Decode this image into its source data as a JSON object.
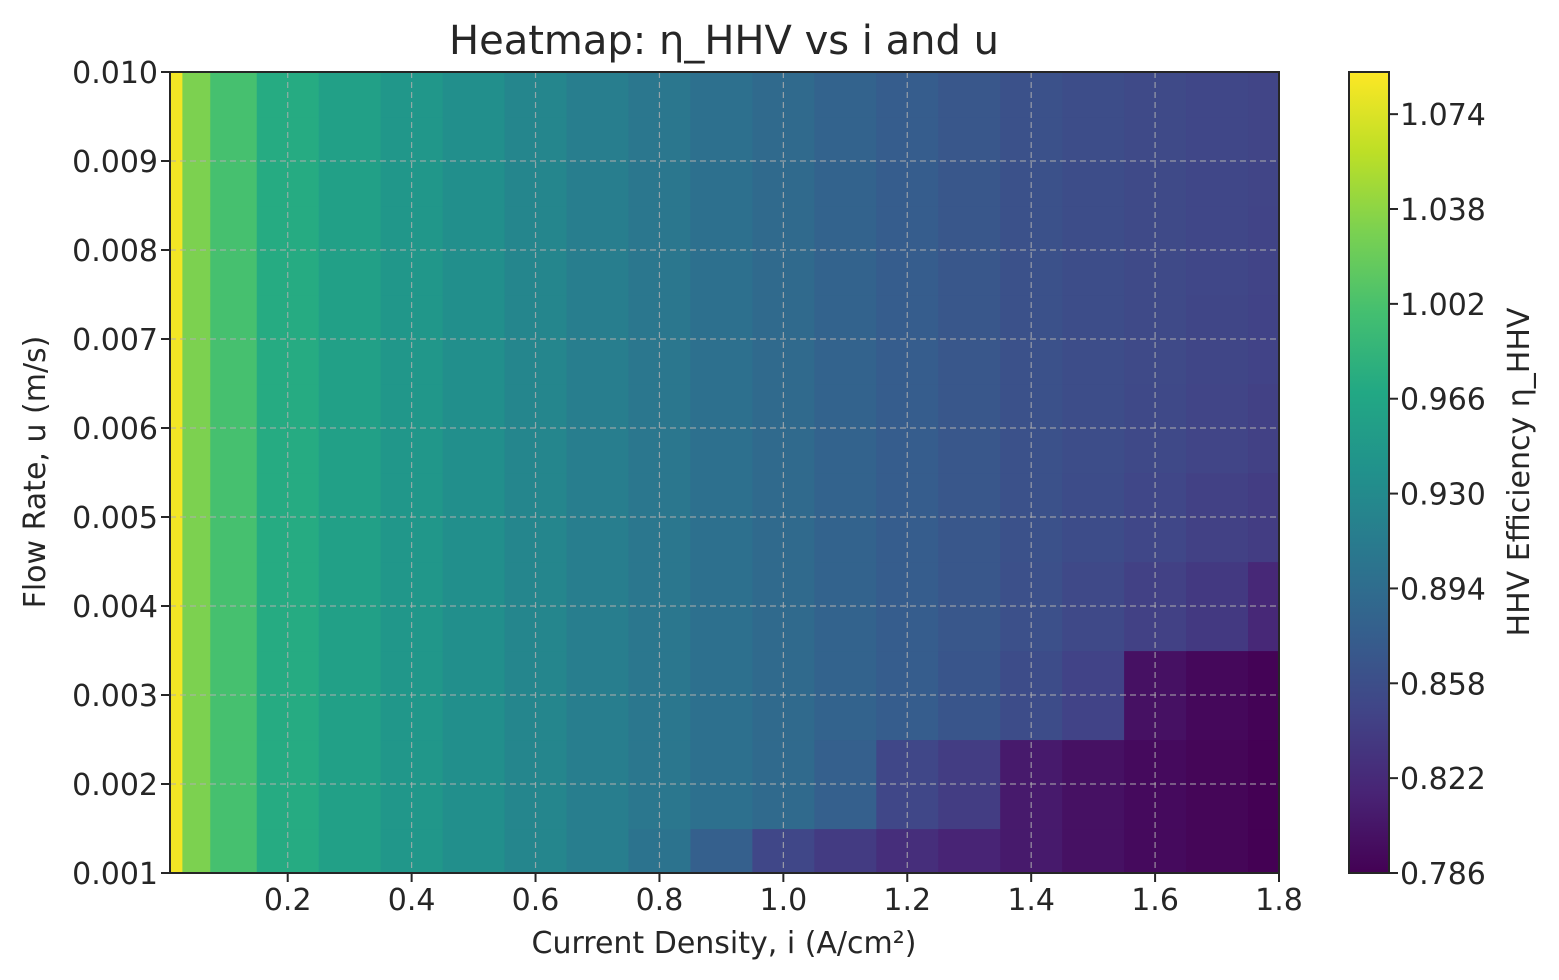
{
  "chart_data": {
    "type": "heatmap",
    "title": "Heatmap: η_HHV vs i and u",
    "xlabel": "Current Density, i (A/cm²)",
    "ylabel": "Flow Rate, u (m/s)",
    "colorbar_label": "HHV Efficiency η_HHV",
    "colormap": "viridis",
    "grid": true,
    "xlim": [
      0.01,
      1.8
    ],
    "ylim": [
      0.001,
      0.01
    ],
    "x_ticks": [
      0.2,
      0.4,
      0.6,
      0.8,
      1.0,
      1.2,
      1.4,
      1.6,
      1.8
    ],
    "x_tick_labels": [
      "0.2",
      "0.4",
      "0.6",
      "0.8",
      "1.0",
      "1.2",
      "1.4",
      "1.6",
      "1.8"
    ],
    "y_ticks": [
      0.001,
      0.002,
      0.003,
      0.004,
      0.005,
      0.006,
      0.007,
      0.008,
      0.009,
      0.01
    ],
    "y_tick_labels": [
      "0.001",
      "0.002",
      "0.003",
      "0.004",
      "0.005",
      "0.006",
      "0.007",
      "0.008",
      "0.009",
      "0.010"
    ],
    "colorbar_range": [
      0.786,
      1.09
    ],
    "colorbar_ticks": [
      0.786,
      0.822,
      0.858,
      0.894,
      0.93,
      0.966,
      1.002,
      1.038,
      1.074
    ],
    "colorbar_tick_labels": [
      "0.786",
      "0.822",
      "0.858",
      "0.894",
      "0.930",
      "0.966",
      "1.002",
      "1.038",
      "1.074"
    ],
    "x_values": [
      0.01,
      0.05,
      0.1,
      0.2,
      0.3,
      0.4,
      0.5,
      0.6,
      0.7,
      0.8,
      0.9,
      1.0,
      1.1,
      1.2,
      1.3,
      1.4,
      1.5,
      1.6,
      1.7,
      1.8
    ],
    "y_values": [
      0.001,
      0.002,
      0.003,
      0.004,
      0.005,
      0.006,
      0.007,
      0.008,
      0.009,
      0.01
    ],
    "z_values": [
      [
        1.085,
        1.03,
        1.0,
        0.972,
        0.958,
        0.946,
        0.935,
        0.925,
        0.915,
        0.902,
        0.878,
        0.85,
        0.838,
        0.826,
        0.816,
        0.808,
        0.8,
        0.794,
        0.79,
        0.786
      ],
      [
        1.085,
        1.03,
        1.0,
        0.972,
        0.958,
        0.946,
        0.935,
        0.925,
        0.915,
        0.906,
        0.898,
        0.89,
        0.878,
        0.85,
        0.84,
        0.808,
        0.8,
        0.794,
        0.79,
        0.786
      ],
      [
        1.085,
        1.03,
        1.0,
        0.972,
        0.958,
        0.946,
        0.935,
        0.925,
        0.915,
        0.906,
        0.898,
        0.89,
        0.882,
        0.875,
        0.866,
        0.856,
        0.846,
        0.8,
        0.792,
        0.788
      ],
      [
        1.085,
        1.03,
        1.0,
        0.972,
        0.958,
        0.946,
        0.935,
        0.925,
        0.915,
        0.906,
        0.898,
        0.89,
        0.882,
        0.875,
        0.868,
        0.86,
        0.852,
        0.844,
        0.836,
        0.82
      ],
      [
        1.085,
        1.03,
        1.0,
        0.972,
        0.958,
        0.946,
        0.935,
        0.925,
        0.915,
        0.906,
        0.898,
        0.89,
        0.882,
        0.875,
        0.868,
        0.862,
        0.856,
        0.85,
        0.844,
        0.84
      ],
      [
        1.085,
        1.03,
        1.0,
        0.972,
        0.958,
        0.946,
        0.935,
        0.925,
        0.915,
        0.906,
        0.898,
        0.89,
        0.882,
        0.875,
        0.868,
        0.862,
        0.857,
        0.852,
        0.848,
        0.844
      ],
      [
        1.085,
        1.03,
        1.0,
        0.972,
        0.958,
        0.946,
        0.935,
        0.925,
        0.915,
        0.906,
        0.898,
        0.89,
        0.882,
        0.875,
        0.868,
        0.862,
        0.857,
        0.853,
        0.849,
        0.846
      ],
      [
        1.085,
        1.03,
        1.0,
        0.972,
        0.958,
        0.946,
        0.935,
        0.925,
        0.915,
        0.906,
        0.898,
        0.89,
        0.882,
        0.875,
        0.868,
        0.862,
        0.857,
        0.853,
        0.85,
        0.847
      ],
      [
        1.085,
        1.03,
        1.0,
        0.972,
        0.958,
        0.946,
        0.935,
        0.925,
        0.915,
        0.906,
        0.898,
        0.89,
        0.882,
        0.875,
        0.868,
        0.862,
        0.857,
        0.853,
        0.85,
        0.848
      ],
      [
        1.085,
        1.03,
        1.0,
        0.972,
        0.958,
        0.946,
        0.935,
        0.925,
        0.915,
        0.906,
        0.898,
        0.89,
        0.882,
        0.875,
        0.868,
        0.862,
        0.857,
        0.853,
        0.85,
        0.848
      ]
    ]
  }
}
